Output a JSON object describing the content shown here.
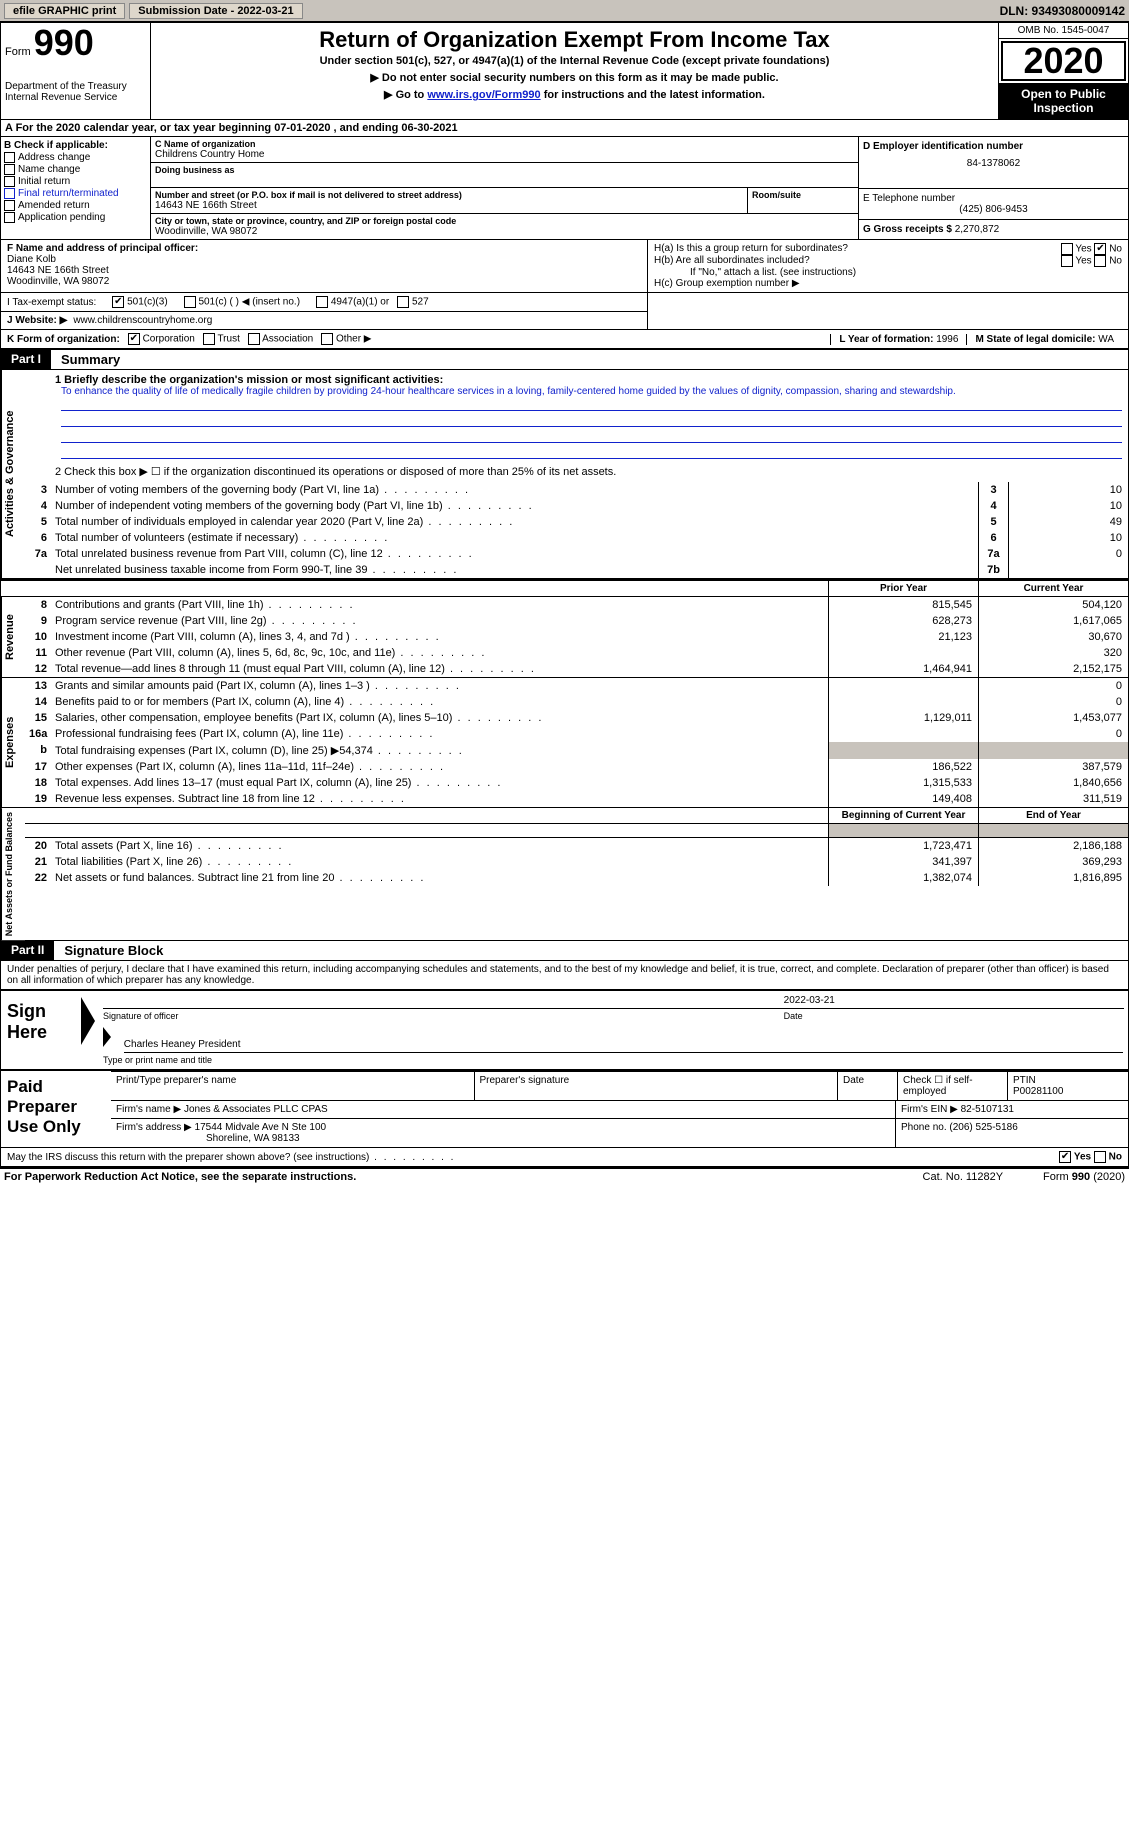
{
  "colors": {
    "bg": "#ffffff",
    "text": "#000000",
    "bar_bg": "#c8c3bc",
    "btn_bg": "#ded7cb",
    "link": "#1122cc",
    "black": "#000000",
    "white": "#ffffff"
  },
  "top_bar": {
    "efile_label": "efile GRAPHIC print",
    "submission_label": "Submission Date - 2022-03-21",
    "dln": "DLN: 93493080009142"
  },
  "header": {
    "form_word": "Form",
    "form_number": "990",
    "dept": "Department of the Treasury\nInternal Revenue Service",
    "title": "Return of Organization Exempt From Income Tax",
    "subtitle1": "Under section 501(c), 527, or 4947(a)(1) of the Internal Revenue Code (except private foundations)",
    "subtitle2": "▶ Do not enter social security numbers on this form as it may be made public.",
    "subtitle3_pre": "▶ Go to ",
    "subtitle3_link": "www.irs.gov/Form990",
    "subtitle3_post": " for instructions and the latest information.",
    "omb": "OMB No. 1545-0047",
    "tax_year": "2020",
    "open_public": "Open to Public Inspection"
  },
  "section_a": "A For the 2020 calendar year, or tax year beginning 07-01-2020    , and ending 06-30-2021",
  "box_b": {
    "header": "B Check if applicable:",
    "items": [
      "Address change",
      "Name change",
      "Initial return",
      "Final return/terminated",
      "Amended return",
      "Application pending"
    ]
  },
  "box_c": {
    "label": "C Name of organization",
    "value": "Childrens Country Home",
    "dba_label": "Doing business as",
    "addr_label": "Number and street (or P.O. box if mail is not delivered to street address)",
    "addr_value": "14643 NE 166th Street",
    "room_label": "Room/suite",
    "city_label": "City or town, state or province, country, and ZIP or foreign postal code",
    "city_value": "Woodinville, WA  98072"
  },
  "box_d": {
    "label": "D Employer identification number",
    "value": "84-1378062"
  },
  "box_e": {
    "label": "E Telephone number",
    "value": "(425) 806-9453"
  },
  "box_g": {
    "label": "G Gross receipts $",
    "value": "2,270,872"
  },
  "box_f": {
    "label": "F  Name and address of principal officer:",
    "name": "Diane Kolb",
    "addr1": "14643 NE 166th Street",
    "addr2": "Woodinville, WA  98072"
  },
  "box_h": {
    "a_label": "H(a)  Is this a group return for subordinates?",
    "a_yes": "Yes",
    "a_no": "No",
    "a_checked": "no",
    "b_label": "H(b)  Are all subordinates included?",
    "b_yes": "Yes",
    "b_no": "No",
    "b_note": "If \"No,\" attach a list. (see instructions)",
    "c_label": "H(c)  Group exemption number ▶"
  },
  "row_i": {
    "label": "I    Tax-exempt status:",
    "opts": [
      "501(c)(3)",
      "501(c) (  ) ◀ (insert no.)",
      "4947(a)(1) or",
      "527"
    ],
    "checked_index": 0
  },
  "row_j": {
    "label": "J   Website: ▶",
    "value": "www.childrenscountryhome.org"
  },
  "row_k": {
    "label": "K Form of organization:",
    "opts": [
      "Corporation",
      "Trust",
      "Association",
      "Other ▶"
    ],
    "checked_index": 0,
    "l_label": "L Year of formation:",
    "l_value": "1996",
    "m_label": "M State of legal domicile:",
    "m_value": "WA"
  },
  "part1": {
    "tag": "Part I",
    "title": "Summary",
    "q1_label": "1  Briefly describe the organization's mission or most significant activities:",
    "q1_text": "To enhance the quality of life of medically fragile children by providing 24-hour healthcare services in a loving, family-centered home guided by the values of dignity, compassion, sharing and stewardship.",
    "q2": "2   Check this box ▶ ☐  if the organization discontinued its operations or disposed of more than 25% of its net assets.",
    "governance_rows": [
      {
        "n": "3",
        "desc": "Number of voting members of the governing body (Part VI, line 1a)",
        "box": "3",
        "val": "10"
      },
      {
        "n": "4",
        "desc": "Number of independent voting members of the governing body (Part VI, line 1b)",
        "box": "4",
        "val": "10"
      },
      {
        "n": "5",
        "desc": "Total number of individuals employed in calendar year 2020 (Part V, line 2a)",
        "box": "5",
        "val": "49"
      },
      {
        "n": "6",
        "desc": "Total number of volunteers (estimate if necessary)",
        "box": "6",
        "val": "10"
      },
      {
        "n": "7a",
        "desc": "Total unrelated business revenue from Part VIII, column (C), line 12",
        "box": "7a",
        "val": "0"
      },
      {
        "n": "",
        "desc": "Net unrelated business taxable income from Form 990-T, line 39",
        "box": "7b",
        "val": ""
      }
    ],
    "col_hdrs": {
      "prior": "Prior Year",
      "current": "Current Year"
    },
    "col_hdrs2": {
      "prior": "Beginning of Current Year",
      "current": "End of Year"
    },
    "revenue_rows": [
      {
        "n": "8",
        "desc": "Contributions and grants (Part VIII, line 1h)",
        "p": "815,545",
        "c": "504,120"
      },
      {
        "n": "9",
        "desc": "Program service revenue (Part VIII, line 2g)",
        "p": "628,273",
        "c": "1,617,065"
      },
      {
        "n": "10",
        "desc": "Investment income (Part VIII, column (A), lines 3, 4, and 7d )",
        "p": "21,123",
        "c": "30,670"
      },
      {
        "n": "11",
        "desc": "Other revenue (Part VIII, column (A), lines 5, 6d, 8c, 9c, 10c, and 11e)",
        "p": "",
        "c": "320"
      },
      {
        "n": "12",
        "desc": "Total revenue—add lines 8 through 11 (must equal Part VIII, column (A), line 12)",
        "p": "1,464,941",
        "c": "2,152,175"
      }
    ],
    "expense_rows": [
      {
        "n": "13",
        "desc": "Grants and similar amounts paid (Part IX, column (A), lines 1–3 )",
        "p": "",
        "c": "0"
      },
      {
        "n": "14",
        "desc": "Benefits paid to or for members (Part IX, column (A), line 4)",
        "p": "",
        "c": "0"
      },
      {
        "n": "15",
        "desc": "Salaries, other compensation, employee benefits (Part IX, column (A), lines 5–10)",
        "p": "1,129,011",
        "c": "1,453,077"
      },
      {
        "n": "16a",
        "desc": "Professional fundraising fees (Part IX, column (A), line 11e)",
        "p": "",
        "c": "0"
      },
      {
        "n": "b",
        "desc": "Total fundraising expenses (Part IX, column (D), line 25) ▶54,374",
        "p": "shaded",
        "c": "shaded"
      },
      {
        "n": "17",
        "desc": "Other expenses (Part IX, column (A), lines 11a–11d, 11f–24e)",
        "p": "186,522",
        "c": "387,579"
      },
      {
        "n": "18",
        "desc": "Total expenses. Add lines 13–17 (must equal Part IX, column (A), line 25)",
        "p": "1,315,533",
        "c": "1,840,656"
      },
      {
        "n": "19",
        "desc": "Revenue less expenses. Subtract line 18 from line 12",
        "p": "149,408",
        "c": "311,519"
      }
    ],
    "net_rows": [
      {
        "n": "20",
        "desc": "Total assets (Part X, line 16)",
        "p": "1,723,471",
        "c": "2,186,188"
      },
      {
        "n": "21",
        "desc": "Total liabilities (Part X, line 26)",
        "p": "341,397",
        "c": "369,293"
      },
      {
        "n": "22",
        "desc": "Net assets or fund balances. Subtract line 21 from line 20",
        "p": "1,382,074",
        "c": "1,816,895"
      }
    ],
    "side_labels": {
      "gov": "Activities & Governance",
      "rev": "Revenue",
      "exp": "Expenses",
      "net": "Net Assets or Fund Balances"
    }
  },
  "part2": {
    "tag": "Part II",
    "title": "Signature Block",
    "declaration": "Under penalties of perjury, I declare that I have examined this return, including accompanying schedules and statements, and to the best of my knowledge and belief, it is true, correct, and complete. Declaration of preparer (other than officer) is based on all information of which preparer has any knowledge.",
    "sign_here": "Sign Here",
    "sig_officer_label": "Signature of officer",
    "date_label": "Date",
    "sig_date": "2022-03-21",
    "name_title": "Charles Heaney  President",
    "name_title_label": "Type or print name and title"
  },
  "preparer": {
    "label": "Paid Preparer Use Only",
    "hdrs": {
      "name": "Print/Type preparer's name",
      "sig": "Preparer's signature",
      "date": "Date",
      "check": "Check ☐ if self-employed",
      "ptin_label": "PTIN",
      "ptin": "P00281100"
    },
    "firm_name_label": "Firm's name   ▶",
    "firm_name": "Jones & Associates PLLC CPAS",
    "firm_ein_label": "Firm's EIN ▶",
    "firm_ein": "82-5107131",
    "firm_addr_label": "Firm's address ▶",
    "firm_addr1": "17544 Midvale Ave N Ste 100",
    "firm_addr2": "Shoreline, WA  98133",
    "phone_label": "Phone no.",
    "phone": "(206) 525-5186"
  },
  "irs_discuss": {
    "text": "May the IRS discuss this return with the preparer shown above? (see instructions)",
    "yes": "Yes",
    "no": "No",
    "checked": "yes"
  },
  "footer": {
    "left": "For Paperwork Reduction Act Notice, see the separate instructions.",
    "mid": "Cat. No. 11282Y",
    "right": "Form 990 (2020)"
  }
}
